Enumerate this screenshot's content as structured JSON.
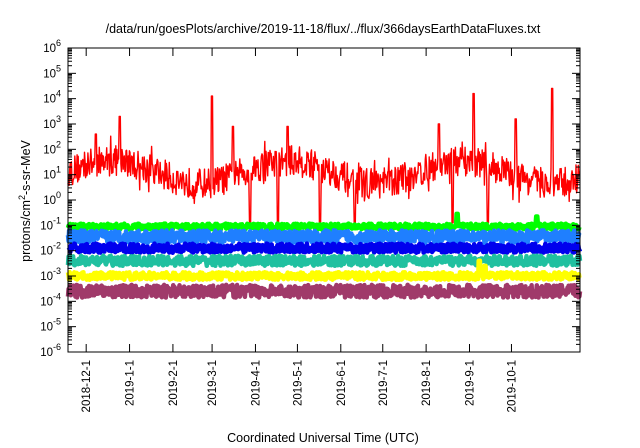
{
  "chart_data": {
    "type": "line",
    "title": "/data/run/goesPlots/archive/2019-11-18/flux/../flux/366daysEarthDataFluxes.txt",
    "xlabel": "Coordinated Universal Time (UTC)",
    "ylabel_parts": {
      "base": "protons/cm",
      "sup": "2",
      "rest": "-s-sr-MeV"
    },
    "yscale": "log",
    "ylim_exp": [
      -6,
      6
    ],
    "y_ticks": [
      {
        "base": "10",
        "exp": "-6"
      },
      {
        "base": "10",
        "exp": "-5"
      },
      {
        "base": "10",
        "exp": "-4"
      },
      {
        "base": "10",
        "exp": "-3"
      },
      {
        "base": "10",
        "exp": "-2"
      },
      {
        "base": "10",
        "exp": "-1"
      },
      {
        "base": "10",
        "exp": "0"
      },
      {
        "base": "10",
        "exp": "1"
      },
      {
        "base": "10",
        "exp": "2"
      },
      {
        "base": "10",
        "exp": "3"
      },
      {
        "base": "10",
        "exp": "4"
      },
      {
        "base": "10",
        "exp": "5"
      },
      {
        "base": "10",
        "exp": "6"
      }
    ],
    "x_ticks": [
      "2018-12-1",
      "2019-1-1",
      "2019-2-1",
      "2019-3-1",
      "2019-4-1",
      "2019-5-1",
      "2019-6-1",
      "2019-7-1",
      "2019-8-1",
      "2019-9-1",
      "2019-10-1"
    ],
    "x_tick_days": [
      13,
      44,
      75,
      103,
      134,
      164,
      195,
      225,
      256,
      287,
      317
    ],
    "x_range_days": [
      0,
      366
    ],
    "series": [
      {
        "color": "#ff0000",
        "log_mean": 1.1,
        "log_spread": 0.6,
        "spikes": [
          [
            20,
            2.6
          ],
          [
            37,
            3.3
          ],
          [
            103,
            4.1
          ],
          [
            118,
            2.9
          ],
          [
            157,
            2.9
          ],
          [
            265,
            3.0
          ],
          [
            290,
            4.2
          ],
          [
            320,
            3.2
          ],
          [
            346,
            4.4
          ]
        ],
        "dips": [
          [
            130,
            -0.9
          ],
          [
            150,
            -0.9
          ],
          [
            180,
            -0.9
          ],
          [
            205,
            -0.9
          ],
          [
            275,
            -0.9
          ],
          [
            300,
            -0.9
          ]
        ]
      },
      {
        "color": "#00ff00",
        "log_mean": -1.05,
        "log_spread": 0.12,
        "spikes": [
          [
            278,
            -0.55
          ],
          [
            335,
            -0.65
          ]
        ]
      },
      {
        "color": "#1f7fff",
        "log_mean": -1.45,
        "log_spread": 0.25,
        "spikes": []
      },
      {
        "color": "#0000ee",
        "log_mean": -1.9,
        "log_spread": 0.18,
        "spikes": []
      },
      {
        "color": "#20c0a0",
        "log_mean": -2.4,
        "log_spread": 0.2,
        "spikes": []
      },
      {
        "color": "#ffff00",
        "log_mean": -3.0,
        "log_spread": 0.15,
        "spikes": [
          [
            294,
            -2.4
          ],
          [
            298,
            -2.6
          ]
        ]
      },
      {
        "color": "#a03a6a",
        "log_mean": -3.6,
        "log_spread": 0.25,
        "spikes": []
      }
    ],
    "grid": false,
    "legend": "none"
  }
}
